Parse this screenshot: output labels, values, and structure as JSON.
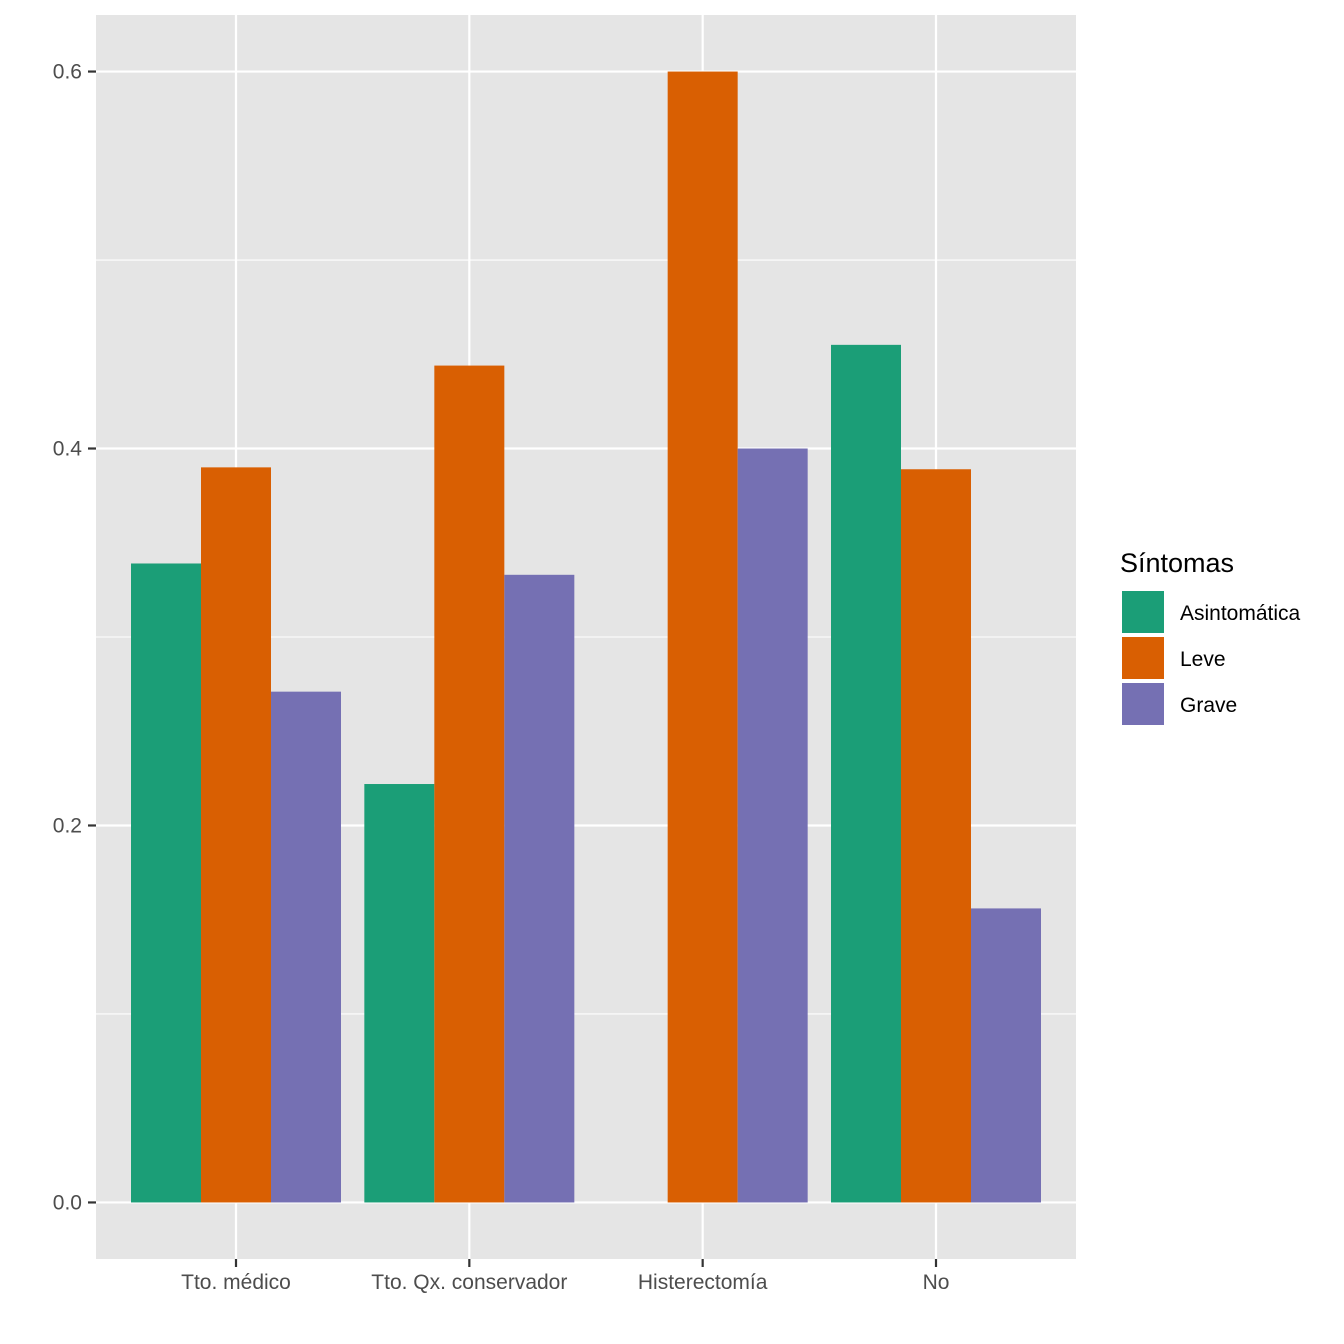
{
  "chart_data": {
    "type": "bar",
    "title": "",
    "xlabel": "",
    "ylabel": "",
    "categories": [
      "Tto. médico",
      "Tto. Qx. conservador",
      "Histerectomía",
      "No"
    ],
    "series": [
      {
        "name": "Asintomática",
        "color": "#1b9e77",
        "values": [
          0.339,
          0.222,
          0.0,
          0.455
        ]
      },
      {
        "name": "Leve",
        "color": "#d95f02",
        "values": [
          0.39,
          0.444,
          0.6,
          0.389
        ]
      },
      {
        "name": "Grave",
        "color": "#7570b3",
        "values": [
          0.271,
          0.333,
          0.4,
          0.156
        ]
      }
    ],
    "y_ticks": [
      "0.0",
      "0.2",
      "0.4",
      "0.6"
    ],
    "y_tick_values": [
      0.0,
      0.2,
      0.4,
      0.6
    ],
    "ylim": [
      -0.03,
      0.63
    ],
    "grid": true,
    "panel_color": "#e5e5e5",
    "legend": {
      "title": "Síntomas",
      "position": "right"
    }
  }
}
